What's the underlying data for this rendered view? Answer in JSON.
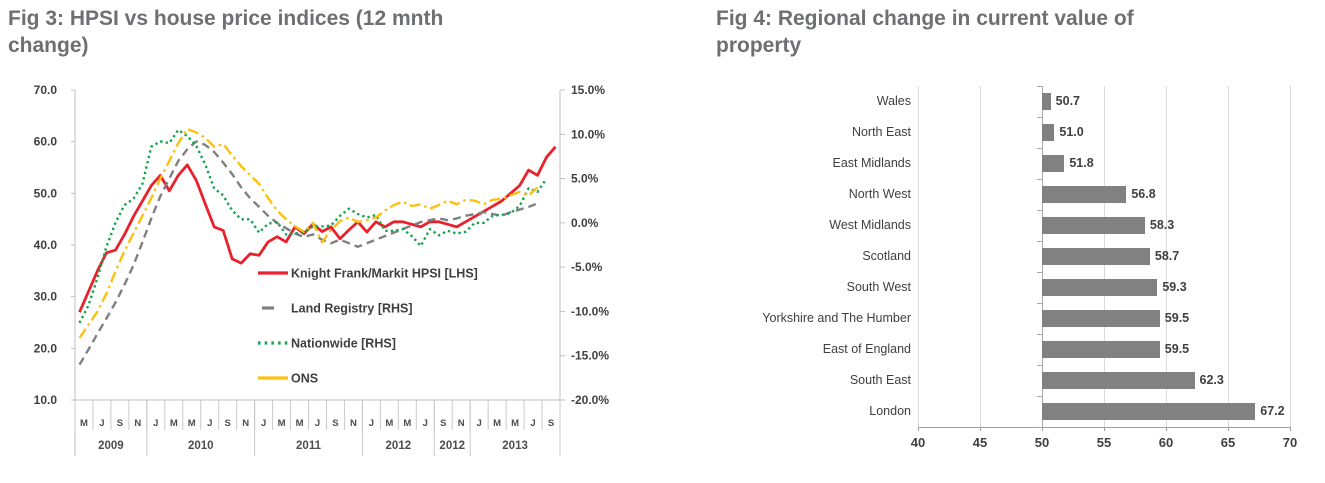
{
  "fig3_panel": {
    "title_line1": "Fig 3: HPSI vs house price indices (12 mnth",
    "title_line2": "change)"
  },
  "fig4_panel": {
    "title_line1": "Fig 4: Regional change in current value of",
    "title_line2": "property"
  },
  "chart_data": [
    {
      "type": "line",
      "title": "Fig 3: HPSI vs house price indices (12 mnth change)",
      "x_start": "2009-05",
      "x_freq": "monthly",
      "x_axis": {
        "tick_letters": [
          "M",
          "J",
          "S",
          "N",
          "J",
          "M",
          "M",
          "J",
          "S",
          "N",
          "J",
          "M",
          "M",
          "J",
          "S",
          "N",
          "J",
          "M",
          "M",
          "J",
          "S",
          "N",
          "J",
          "M",
          "M",
          "J",
          "S"
        ],
        "year_groups": [
          {
            "label": "2009",
            "cells": 4
          },
          {
            "label": "2010",
            "cells": 6
          },
          {
            "label": "2011",
            "cells": 6
          },
          {
            "label": "2012",
            "cells": 4
          },
          {
            "label": "2012",
            "cells": 2
          },
          {
            "label": "2013",
            "cells": 5
          }
        ]
      },
      "axes": {
        "lhs": {
          "min": 10,
          "max": 70,
          "step": 10,
          "format": "0.0"
        },
        "rhs": {
          "min": -20,
          "max": 15,
          "step": 5,
          "format": "0.0%"
        }
      },
      "grid": false,
      "legend_position": "inside-lower-middle",
      "series": [
        {
          "name": "Knight Frank/Markit HPSI [LHS]",
          "axis": "lhs",
          "color": "#e8212c",
          "line_style": "solid",
          "values": [
            27,
            31,
            35,
            38.5,
            39,
            42,
            45.5,
            48.5,
            51.5,
            53.5,
            50.5,
            53.5,
            55.5,
            52.5,
            48,
            43.5,
            42.8,
            37.3,
            36.5,
            38.3,
            38,
            40.6,
            41.6,
            40.6,
            43.5,
            42.2,
            44.1,
            42.6,
            43.5,
            41.2,
            42.9,
            44.5,
            42.5,
            44.5,
            43.5,
            44.5,
            44.5,
            44,
            43.5,
            44.5,
            44.5,
            44,
            43.5,
            44.5,
            45.5,
            46.5,
            47.5,
            48.5,
            50,
            51.5,
            54.5,
            53.5,
            57,
            59
          ]
        },
        {
          "name": "Land Registry [RHS]",
          "axis": "rhs",
          "color": "#808080",
          "line_style": "dashed",
          "values": [
            -16,
            -14.3,
            -12.5,
            -10.8,
            -9,
            -7,
            -4.8,
            -2.2,
            0.5,
            3,
            5,
            7,
            8.3,
            9.2,
            8.8,
            8,
            6.8,
            5.5,
            4,
            2.8,
            1.8,
            0.8,
            0,
            -0.6,
            -1.2,
            -1.6,
            -1.3,
            -1.9,
            -2.3,
            -1.9,
            -2.3,
            -2.7,
            -2.3,
            -1.9,
            -1.5,
            -1.1,
            -0.7,
            -0.3,
            0.1,
            0.3,
            0.5,
            0.3,
            0.5,
            0.8,
            1,
            1.2,
            1,
            0.8,
            1.2,
            1.5,
            1.8,
            2.2,
            null,
            null
          ]
        },
        {
          "name": "Nationwide [RHS]",
          "axis": "rhs",
          "color": "#12a24b",
          "line_style": "dotted",
          "values": [
            -11.3,
            -9.3,
            -6.2,
            -2.7,
            0,
            2,
            2.7,
            4.4,
            8.6,
            9.2,
            9,
            10.5,
            9.8,
            8.7,
            6.6,
            3.9,
            3.1,
            1.4,
            0.4,
            0.4,
            -1.1,
            -0.1,
            0.1,
            -1.3,
            -1.2,
            -1.1,
            -0.4,
            -0.4,
            -0.3,
            0.8,
            1.6,
            1,
            0.6,
            0.9,
            -0.9,
            -0.9,
            -0.7,
            -1.5,
            -2.6,
            -0.7,
            -1.4,
            -0.9,
            -1.2,
            -1,
            0,
            0,
            0.8,
            0.9,
            1.1,
            1.9,
            3.9,
            3.5,
            5,
            null
          ]
        },
        {
          "name": "ONS",
          "axis": "rhs",
          "color": "#fdc010",
          "line_style": "dash-dot",
          "values": [
            -13,
            -11.5,
            -10,
            -8,
            -5.5,
            -3.2,
            -1.2,
            0.8,
            2.8,
            5,
            7,
            9,
            10.6,
            10.2,
            9.6,
            8.6,
            8.9,
            7.6,
            6.4,
            5.4,
            4.4,
            2.8,
            1.4,
            0.4,
            -0.4,
            -1,
            0,
            -2.2,
            -0.8,
            0.2,
            0.6,
            0.1,
            0.3,
            0.6,
            1.4,
            2,
            2.4,
            1.9,
            2.1,
            1.6,
            2,
            2.5,
            2.1,
            2.6,
            2.5,
            2.1,
            2.6,
            2.7,
            3.1,
            3.5,
            3.1,
            4,
            null,
            null
          ]
        }
      ]
    },
    {
      "type": "bar",
      "orientation": "horizontal",
      "title": "Fig 4: Regional change in current value of property",
      "categories": [
        "Wales",
        "North East",
        "East Midlands",
        "North West",
        "West Midlands",
        "Scotland",
        "South West",
        "Yorkshire and The Humber",
        "East of England",
        "South East",
        "London"
      ],
      "values": [
        50.7,
        51.0,
        51.8,
        56.8,
        58.3,
        58.7,
        59.3,
        59.5,
        59.5,
        62.3,
        67.2
      ],
      "xlim": [
        40,
        70
      ],
      "x_ticks": [
        40,
        45,
        50,
        55,
        60,
        65,
        70
      ],
      "bar_base": 50,
      "bar_color": "#818181",
      "data_labels": true,
      "grid": true
    }
  ]
}
